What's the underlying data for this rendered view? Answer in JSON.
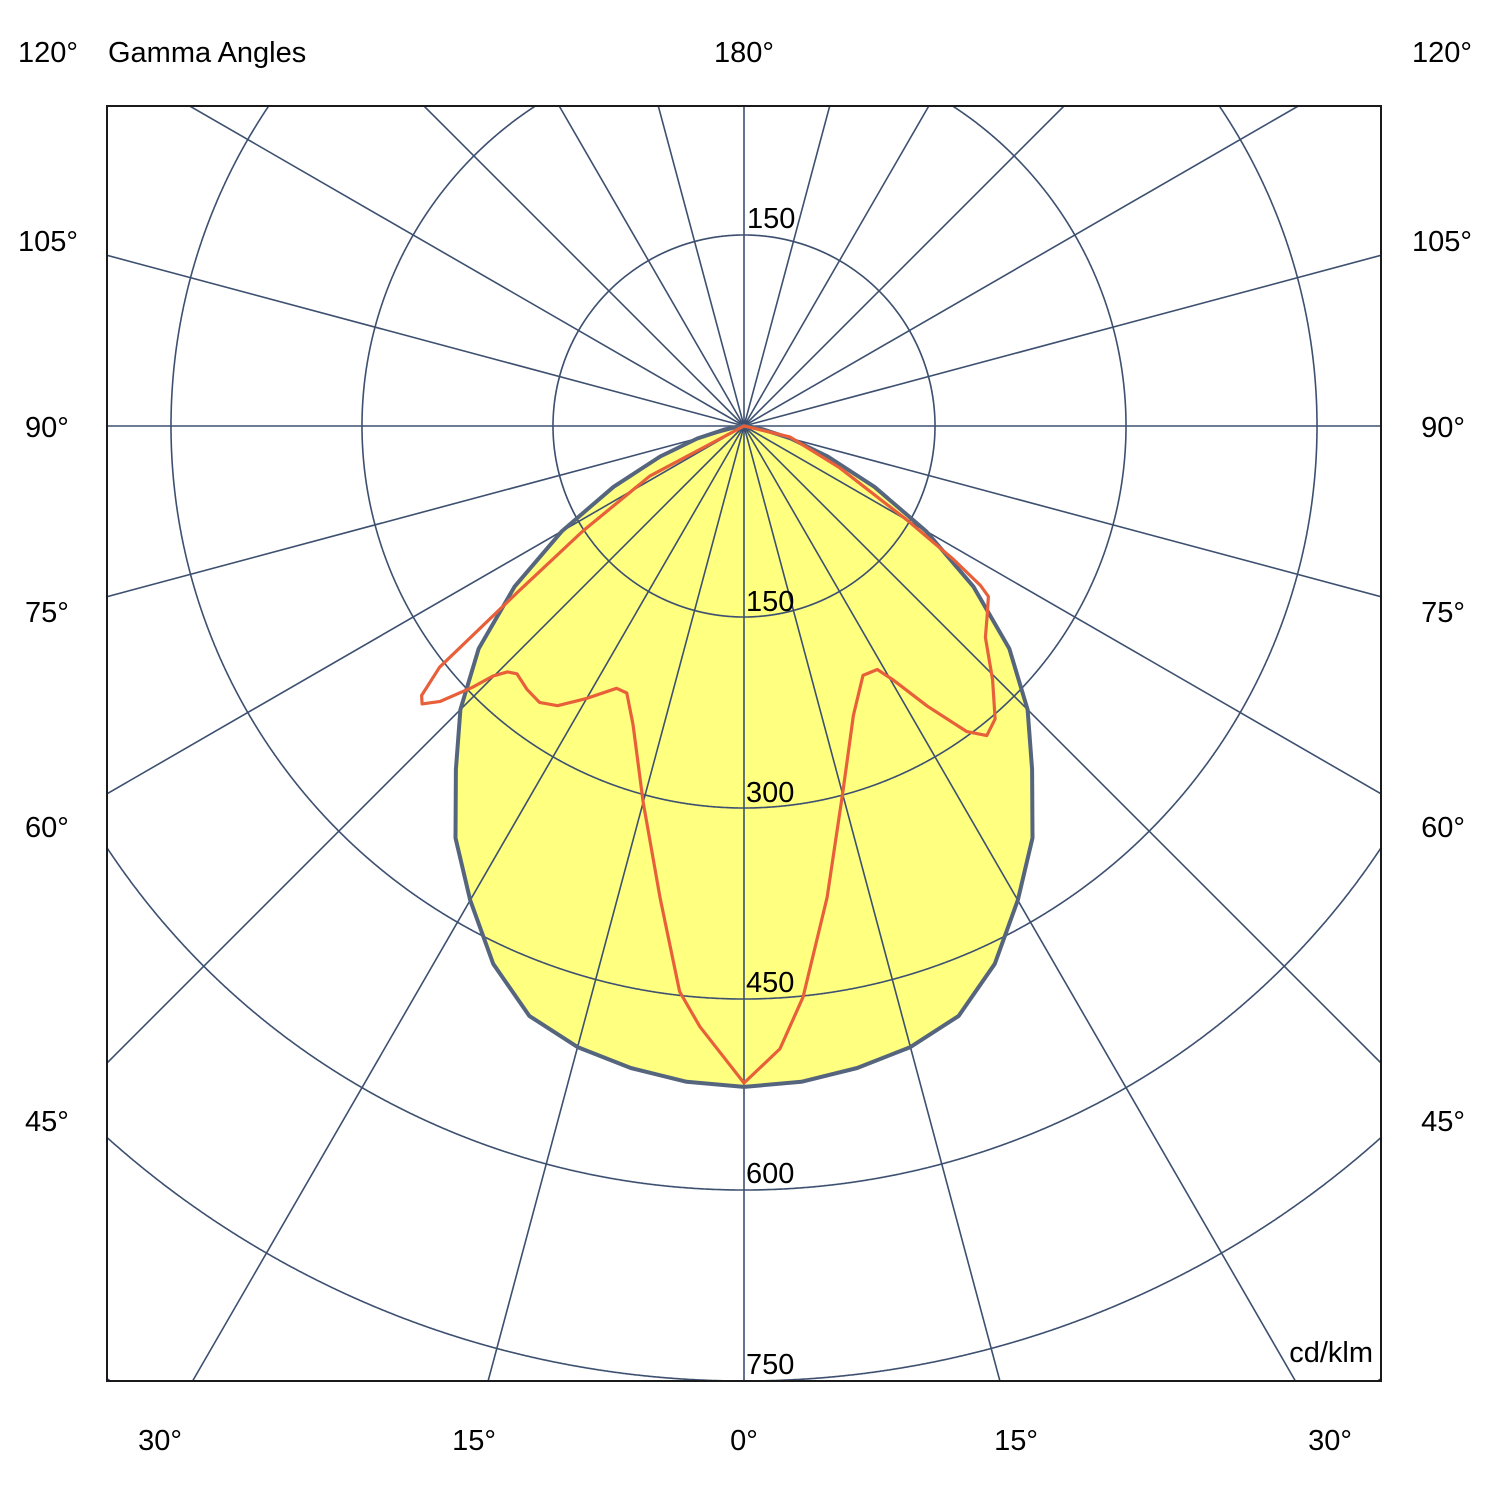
{
  "chart_data": {
    "type": "polar",
    "title": "Gamma Angles",
    "unit_label": "cd/klm",
    "radial_ticks": [
      150,
      300,
      450,
      600,
      750
    ],
    "radial_tick_labels": {
      "top": "150",
      "bottom": [
        "150",
        "300",
        "450",
        "600",
        "750"
      ]
    },
    "angle_labels": {
      "top": {
        "left": "120°",
        "center": "180°",
        "right": "120°"
      },
      "left": [
        "105°",
        "90°",
        "75°",
        "60°",
        "45°"
      ],
      "right": [
        "105°",
        "90°",
        "75°",
        "60°",
        "45°"
      ],
      "bottom": [
        "30°",
        "15°",
        "0°",
        "15°",
        "30°"
      ]
    },
    "angle_grid_step_deg": 15,
    "radial_grid_step": 150,
    "grid": true,
    "series": [
      {
        "symmetric": true,
        "color": "#ffff80",
        "outline_color": "#56657e",
        "fill": true,
        "gamma": [
          0,
          5,
          10,
          15,
          20,
          25,
          30,
          35,
          40,
          45,
          50,
          55,
          60,
          65,
          70,
          75,
          80,
          85,
          90
        ],
        "intensity": [
          519,
          517,
          512,
          505,
          493,
          466,
          430,
          395,
          352,
          315,
          272,
          220,
          165,
          113,
          70,
          38,
          15,
          4,
          0
        ]
      },
      {
        "symmetric": false,
        "color": "#e8603a",
        "fill": false,
        "gamma": [
          -90,
          -62,
          -56.9,
          -53.7,
          -51.6,
          -50.1,
          -49.2,
          -47.8,
          -46.1,
          -45.1,
          -43.9,
          -42.5,
          -39.5,
          -36.5,
          -33.7,
          -30.0,
          -25.9,
          -23.7,
          -20.4,
          -15.0,
          -10.1,
          -6.5,
          -4.2,
          0,
          3.3,
          5.9,
          10.0,
          15.1,
          20.7,
          25.5,
          28.7,
          30.4,
          33.2,
          36.1,
          38.1,
          40.6,
          44.4,
          48.8,
          52.1,
          55.1,
          56.0,
          57.5,
          60.0,
          66.4,
          76.6,
          90
        ],
        "intensity": [
          0,
          84,
          151,
          221,
          305,
          330,
          334,
          322,
          296,
          278,
          268,
          264,
          268,
          270,
          264,
          247,
          229,
          229,
          250,
          306,
          376,
          447,
          473,
          516,
          490,
          451,
          376,
          298,
          243,
          217,
          218,
          231,
          263,
          297,
          309,
          303,
          279,
          252,
          242,
          234,
          224,
          195,
          148,
          82,
          37,
          0
        ]
      }
    ]
  }
}
